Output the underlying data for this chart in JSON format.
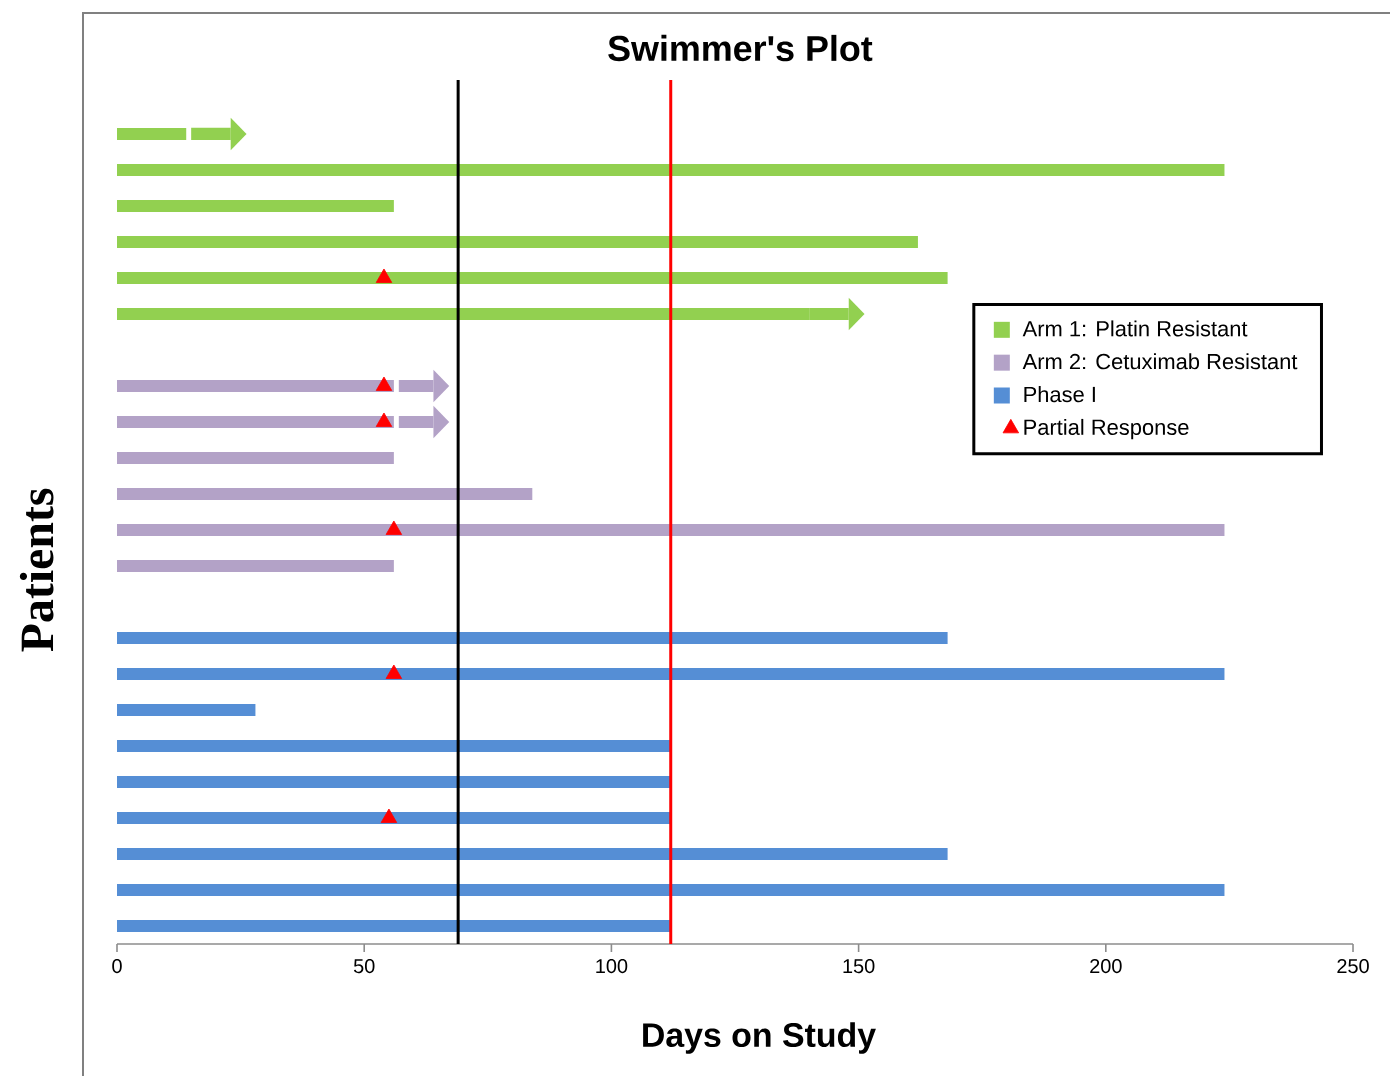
{
  "chart_data": {
    "type": "bar",
    "orientation": "horizontal",
    "title": "Swimmer's Plot",
    "xlabel": "Days on Study",
    "ylabel": "Patients",
    "categories": [
      null,
      null,
      null,
      null,
      null,
      null,
      null,
      null,
      null,
      null,
      null,
      null,
      null,
      null,
      null,
      null,
      null,
      null,
      null,
      null,
      null,
      null,
      null,
      null
    ],
    "xlim": [
      0,
      250
    ],
    "xticks": [
      0,
      50,
      100,
      150,
      200,
      250
    ],
    "legend": "right",
    "series": [
      {
        "name": "Arm 1: Platin Resistant",
        "color": "#92d050",
        "values": [
          null,
          14,
          224,
          56,
          162,
          168,
          140,
          null,
          null,
          null,
          null,
          null,
          null,
          null,
          null,
          null,
          null,
          null,
          null,
          null,
          null,
          null,
          null,
          null
        ]
      },
      {
        "color": "#92d050",
        "base": [
          null,
          15,
          null,
          null,
          null,
          null,
          140,
          null,
          null,
          null,
          null,
          null,
          null,
          null,
          null,
          null,
          null,
          null,
          null,
          null,
          null,
          null,
          null,
          null
        ],
        "values": [
          null,
          8,
          null,
          null,
          null,
          null,
          8,
          null,
          null,
          null,
          null,
          null,
          null,
          null,
          null,
          null,
          null,
          null,
          null,
          null,
          null,
          null,
          null,
          null
        ]
      },
      {
        "name": "Arm 2: Cetuximab Resistant",
        "color": "#b3a2c7",
        "values": [
          null,
          null,
          null,
          null,
          null,
          null,
          null,
          null,
          56,
          56,
          56,
          84,
          224,
          56,
          null,
          null,
          null,
          null,
          null,
          null,
          null,
          null,
          null,
          null
        ]
      },
      {
        "color": "#b3a2c7",
        "base": [
          null,
          null,
          null,
          null,
          null,
          null,
          null,
          null,
          57,
          57,
          null,
          null,
          null,
          null,
          null,
          null,
          null,
          null,
          null,
          null,
          null,
          null,
          null,
          null
        ],
        "values": [
          null,
          null,
          null,
          null,
          null,
          null,
          null,
          null,
          7,
          7,
          null,
          null,
          null,
          null,
          null,
          null,
          null,
          null,
          null,
          null,
          null,
          null,
          null,
          null
        ]
      },
      {
        "name": "Phase I",
        "color": "#558ed5",
        "values": [
          null,
          null,
          null,
          null,
          null,
          null,
          null,
          null,
          null,
          null,
          null,
          null,
          null,
          null,
          null,
          168,
          224,
          28,
          112,
          112,
          112,
          168,
          224,
          112
        ]
      },
      {
        "name": "Partial Response",
        "type": "scatter",
        "color": "#ff0000",
        "marker": "triangle",
        "values": [
          null,
          null,
          null,
          null,
          null,
          54,
          null,
          null,
          54,
          54,
          null,
          null,
          56,
          null,
          null,
          null,
          56,
          null,
          null,
          null,
          55,
          null,
          null,
          null
        ]
      }
    ],
    "ref_lines": [
      {
        "axis": "x",
        "value": 69,
        "color": "#000000"
      },
      {
        "axis": "x",
        "value": 112,
        "color": "#ff0000"
      }
    ]
  }
}
